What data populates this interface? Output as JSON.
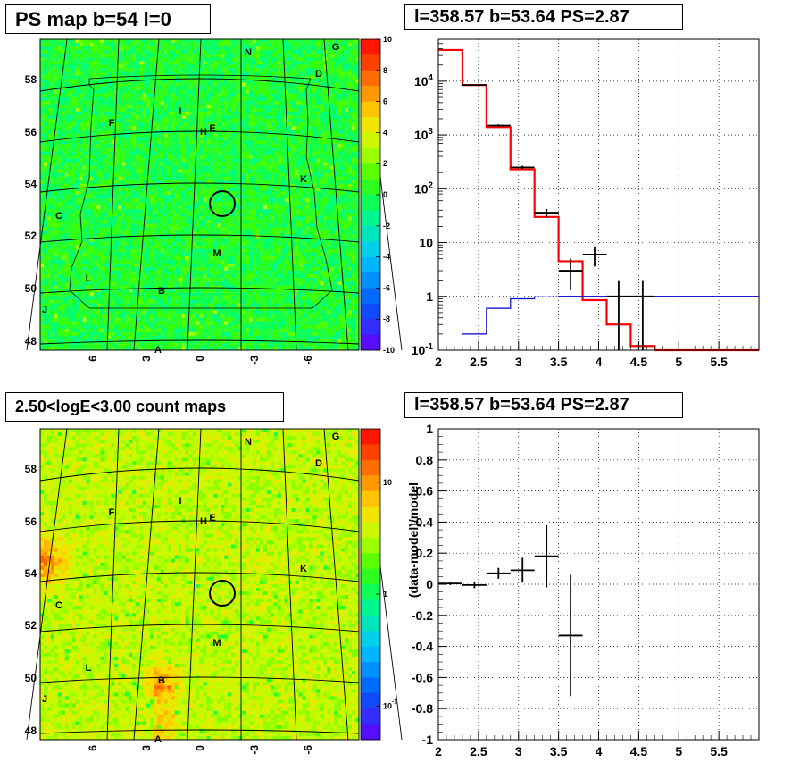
{
  "titles": {
    "ps_map": "PS map b=54 l=0",
    "spectrum": "l=358.57 b=53.64 PS=2.87",
    "count_map": "2.50<logE<3.00 count maps",
    "residual": "l=358.57 b=53.64 PS=2.87"
  },
  "map_axes": {
    "y_ticks": [
      "58",
      "56",
      "54",
      "52",
      "50",
      "48"
    ],
    "x_ticks": [
      "6",
      "3",
      "0",
      "-3",
      "-6"
    ]
  },
  "map_labels": [
    "N",
    "G",
    "D",
    "I",
    "H",
    "E",
    "F",
    "K",
    "C",
    "M",
    "L",
    "B",
    "J",
    "A"
  ],
  "colors": {
    "data": "#000000",
    "model": "#ff0000",
    "background": "#0000cc"
  },
  "chart_data": [
    {
      "type": "heatmap",
      "title": "PS map b=54 l=0",
      "ylabel": "",
      "xlabel": "",
      "colorbar_ticks": [
        "10",
        "8",
        "6",
        "4",
        "2",
        "0",
        "-2",
        "-4",
        "-6",
        "-8",
        "-10"
      ],
      "zlim": [
        -10,
        10
      ],
      "source_marker": {
        "l": 358.57,
        "b": 53.64
      }
    },
    {
      "type": "line",
      "title": "l=358.57 b=53.64 PS=2.87",
      "log_y": true,
      "xlim": [
        2,
        6
      ],
      "ylim": [
        0.1,
        60000
      ],
      "x_ticks": [
        "2",
        "2.5",
        "3",
        "3.5",
        "4",
        "4.5",
        "5",
        "5.5"
      ],
      "y_ticks": [
        "10^4",
        "10^3",
        "10^2",
        "10",
        "1",
        "10^-1"
      ],
      "grid": true,
      "series": [
        {
          "kind": "model",
          "edges": [
            2,
            2.3,
            2.6,
            2.9,
            3.2,
            3.5,
            3.8,
            4.1,
            4.4,
            4.7,
            6
          ],
          "values": [
            38000,
            8500,
            1400,
            230,
            30,
            4.5,
            0.85,
            0.3,
            0.12,
            0.1
          ]
        },
        {
          "kind": "background",
          "edges": [
            2.3,
            2.6,
            2.9,
            3.2,
            3.5,
            3.8,
            6
          ],
          "values": [
            0.2,
            0.6,
            0.9,
            0.98,
            1.0,
            1.0
          ]
        },
        {
          "kind": "data",
          "points": [
            {
              "x": 2.45,
              "xerr": 0.15,
              "y": 8500,
              "ylo": 8300,
              "yhi": 8700
            },
            {
              "x": 2.75,
              "xerr": 0.15,
              "y": 1500,
              "ylo": 1420,
              "yhi": 1580
            },
            {
              "x": 3.05,
              "xerr": 0.15,
              "y": 250,
              "ylo": 232,
              "yhi": 268
            },
            {
              "x": 3.35,
              "xerr": 0.15,
              "y": 36,
              "ylo": 30,
              "yhi": 42
            },
            {
              "x": 3.65,
              "xerr": 0.15,
              "y": 3,
              "ylo": 1.3,
              "yhi": 5
            },
            {
              "x": 3.95,
              "xerr": 0.15,
              "y": 6,
              "ylo": 3.6,
              "yhi": 8.5
            },
            {
              "x": 4.25,
              "xerr": 0.15,
              "y": 1,
              "ylo": 0.1,
              "yhi": 2
            },
            {
              "x": 4.55,
              "xerr": 0.15,
              "y": 1,
              "ylo": 0.1,
              "yhi": 2
            }
          ]
        }
      ]
    },
    {
      "type": "heatmap",
      "title": "2.50<logE<3.00 count maps",
      "colorbar_ticks": [
        "10",
        "1",
        "10^-1"
      ],
      "log_z": true,
      "zlim": [
        0.05,
        30
      ],
      "source_marker": {
        "l": 358.57,
        "b": 53.64
      }
    },
    {
      "type": "scatter",
      "title": "l=358.57 b=53.64 PS=2.87",
      "ylabel": "(data-model)/model",
      "xlim": [
        2,
        6
      ],
      "ylim": [
        -1,
        1
      ],
      "x_ticks": [
        "2",
        "2.5",
        "3",
        "3.5",
        "4",
        "4.5",
        "5",
        "5.5"
      ],
      "y_ticks": [
        "1",
        "0.8",
        "0.6",
        "0.4",
        "0.2",
        "0",
        "-0.2",
        "-0.4",
        "-0.6",
        "-0.8",
        "-1"
      ],
      "grid": true,
      "points": [
        {
          "x": 2.15,
          "xerr": 0.15,
          "y": 0.005,
          "yerr": 0.01
        },
        {
          "x": 2.45,
          "xerr": 0.15,
          "y": -0.005,
          "yerr": 0.02
        },
        {
          "x": 2.75,
          "xerr": 0.15,
          "y": 0.07,
          "yerr": 0.035
        },
        {
          "x": 3.05,
          "xerr": 0.15,
          "y": 0.09,
          "yerr": 0.08
        },
        {
          "x": 3.35,
          "xerr": 0.15,
          "y": 0.18,
          "yerr": 0.2
        },
        {
          "x": 3.65,
          "xerr": 0.15,
          "y": -0.33,
          "yerr": 0.39
        }
      ]
    }
  ]
}
